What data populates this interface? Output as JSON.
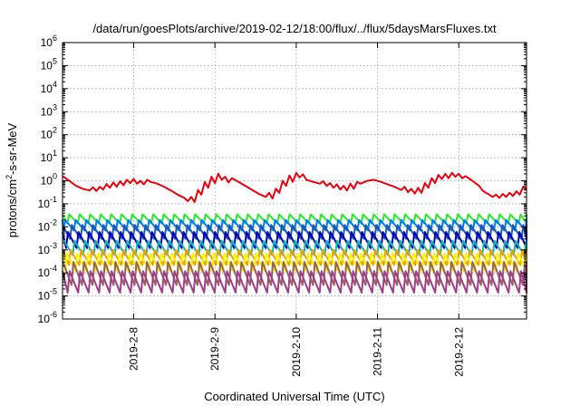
{
  "chart_data": {
    "type": "line",
    "title": "/data/run/goesPlots/archive/2019-02-12/18:00/flux/../flux/5daysMarsFluxes.txt",
    "xlabel": "Coordinated Universal Time (UTC)",
    "ylabel": "protons/cm²-s-sr-MeV",
    "y_scale": "log",
    "ylim": [
      1e-06,
      1000000.0
    ],
    "xlim": [
      "2019-02-07T03:00",
      "2019-02-12T20:00"
    ],
    "y_ticks": [
      {
        "value": 1e-06,
        "exp": "-6"
      },
      {
        "value": 1e-05,
        "exp": "-5"
      },
      {
        "value": 0.0001,
        "exp": "-4"
      },
      {
        "value": 0.001,
        "exp": "-3"
      },
      {
        "value": 0.01,
        "exp": "-2"
      },
      {
        "value": 0.1,
        "exp": "-1"
      },
      {
        "value": 1,
        "exp": "0"
      },
      {
        "value": 10,
        "exp": "1"
      },
      {
        "value": 100,
        "exp": "2"
      },
      {
        "value": 1000,
        "exp": "3"
      },
      {
        "value": 10000,
        "exp": "4"
      },
      {
        "value": 100000,
        "exp": "5"
      },
      {
        "value": 1000000,
        "exp": "6"
      }
    ],
    "x_ticks": [
      {
        "label": "2019-2-8",
        "x": "2019-02-08T00:00"
      },
      {
        "label": "2019-2-9",
        "x": "2019-02-09T00:00"
      },
      {
        "label": "2019-2-10",
        "x": "2019-02-10T00:00"
      },
      {
        "label": "2019-2-11",
        "x": "2019-02-11T00:00"
      },
      {
        "label": "2019-2-12",
        "x": "2019-02-12T00:00"
      }
    ],
    "grid": true,
    "series": [
      {
        "color": "#e8000b",
        "sawtooth": false,
        "points": [
          [
            "2019-02-07T03:00",
            1.6
          ],
          [
            "2019-02-07T05:00",
            1.0
          ],
          [
            "2019-02-07T07:00",
            0.6
          ],
          [
            "2019-02-07T09:00",
            0.45
          ],
          [
            "2019-02-07T11:00",
            0.38
          ],
          [
            "2019-02-07T12:00",
            0.52
          ],
          [
            "2019-02-07T13:00",
            0.36
          ],
          [
            "2019-02-07T14:00",
            0.55
          ],
          [
            "2019-02-07T15:00",
            0.42
          ],
          [
            "2019-02-07T16:00",
            0.72
          ],
          [
            "2019-02-07T17:00",
            0.5
          ],
          [
            "2019-02-07T18:00",
            0.85
          ],
          [
            "2019-02-07T19:00",
            0.55
          ],
          [
            "2019-02-07T20:00",
            0.95
          ],
          [
            "2019-02-07T21:00",
            0.65
          ],
          [
            "2019-02-07T22:00",
            1.1
          ],
          [
            "2019-02-07T23:00",
            0.8
          ],
          [
            "2019-02-08T00:00",
            1.2
          ],
          [
            "2019-02-08T01:00",
            0.75
          ],
          [
            "2019-02-08T02:00",
            1.0
          ],
          [
            "2019-02-08T03:00",
            0.7
          ],
          [
            "2019-02-08T04:00",
            1.1
          ],
          [
            "2019-02-08T05:00",
            0.9
          ],
          [
            "2019-02-08T07:00",
            0.75
          ],
          [
            "2019-02-08T09:00",
            0.55
          ],
          [
            "2019-02-08T11:00",
            0.38
          ],
          [
            "2019-02-08T13:00",
            0.25
          ],
          [
            "2019-02-08T15:00",
            0.18
          ],
          [
            "2019-02-08T16:00",
            0.13
          ],
          [
            "2019-02-08T17:00",
            0.2
          ],
          [
            "2019-02-08T18:00",
            0.12
          ],
          [
            "2019-02-08T19:00",
            0.4
          ],
          [
            "2019-02-08T20:00",
            0.25
          ],
          [
            "2019-02-08T21:00",
            0.9
          ],
          [
            "2019-02-08T22:00",
            0.5
          ],
          [
            "2019-02-08T23:00",
            1.5
          ],
          [
            "2019-02-09T00:00",
            0.8
          ],
          [
            "2019-02-09T01:00",
            2.0
          ],
          [
            "2019-02-09T02:00",
            1.1
          ],
          [
            "2019-02-09T03:00",
            1.5
          ],
          [
            "2019-02-09T04:00",
            0.85
          ],
          [
            "2019-02-09T05:00",
            1.3
          ],
          [
            "2019-02-09T07:00",
            0.9
          ],
          [
            "2019-02-09T09:00",
            0.6
          ],
          [
            "2019-02-09T11:00",
            0.4
          ],
          [
            "2019-02-09T13:00",
            0.27
          ],
          [
            "2019-02-09T15:00",
            0.2
          ],
          [
            "2019-02-09T16:00",
            0.3
          ],
          [
            "2019-02-09T17:00",
            0.17
          ],
          [
            "2019-02-09T18:00",
            0.45
          ],
          [
            "2019-02-09T19:00",
            0.3
          ],
          [
            "2019-02-09T20:00",
            1.0
          ],
          [
            "2019-02-09T21:00",
            0.6
          ],
          [
            "2019-02-09T22:00",
            1.7
          ],
          [
            "2019-02-09T23:00",
            0.9
          ],
          [
            "2019-02-10T00:00",
            2.2
          ],
          [
            "2019-02-10T01:00",
            1.4
          ],
          [
            "2019-02-10T02:00",
            1.9
          ],
          [
            "2019-02-10T03:00",
            1.1
          ],
          [
            "2019-02-10T05:00",
            0.9
          ],
          [
            "2019-02-10T07:00",
            0.75
          ],
          [
            "2019-02-10T08:00",
            0.95
          ],
          [
            "2019-02-10T09:00",
            0.6
          ],
          [
            "2019-02-10T10:00",
            0.8
          ],
          [
            "2019-02-10T11:00",
            0.5
          ],
          [
            "2019-02-10T12:00",
            0.7
          ],
          [
            "2019-02-10T13:00",
            0.42
          ],
          [
            "2019-02-10T14:00",
            0.6
          ],
          [
            "2019-02-10T15:00",
            0.38
          ],
          [
            "2019-02-10T16:00",
            0.75
          ],
          [
            "2019-02-10T17:00",
            0.45
          ],
          [
            "2019-02-10T18:00",
            0.9
          ],
          [
            "2019-02-10T19:00",
            0.75
          ],
          [
            "2019-02-10T21:00",
            1.0
          ],
          [
            "2019-02-10T23:00",
            1.1
          ],
          [
            "2019-02-11T01:00",
            0.9
          ],
          [
            "2019-02-11T03:00",
            0.7
          ],
          [
            "2019-02-11T05:00",
            0.55
          ],
          [
            "2019-02-11T07:00",
            0.4
          ],
          [
            "2019-02-11T08:00",
            0.55
          ],
          [
            "2019-02-11T09:00",
            0.32
          ],
          [
            "2019-02-11T10:00",
            0.45
          ],
          [
            "2019-02-11T11:00",
            0.28
          ],
          [
            "2019-02-11T12:00",
            0.5
          ],
          [
            "2019-02-11T13:00",
            0.3
          ],
          [
            "2019-02-11T14:00",
            0.8
          ],
          [
            "2019-02-11T15:00",
            0.5
          ],
          [
            "2019-02-11T16:00",
            1.3
          ],
          [
            "2019-02-11T17:00",
            0.8
          ],
          [
            "2019-02-11T18:00",
            1.8
          ],
          [
            "2019-02-11T19:00",
            1.2
          ],
          [
            "2019-02-11T20:00",
            2.0
          ],
          [
            "2019-02-11T21:00",
            1.3
          ],
          [
            "2019-02-11T22:00",
            2.2
          ],
          [
            "2019-02-11T23:00",
            1.5
          ],
          [
            "2019-02-12T00:00",
            2.0
          ],
          [
            "2019-02-12T01:00",
            1.3
          ],
          [
            "2019-02-12T02:00",
            1.6
          ],
          [
            "2019-02-12T04:00",
            1.0
          ],
          [
            "2019-02-12T06:00",
            0.6
          ],
          [
            "2019-02-12T07:00",
            0.38
          ],
          [
            "2019-02-12T08:00",
            0.3
          ],
          [
            "2019-02-12T09:00",
            0.25
          ],
          [
            "2019-02-12T10:00",
            0.2
          ],
          [
            "2019-02-12T11:00",
            0.25
          ],
          [
            "2019-02-12T12:00",
            0.18
          ],
          [
            "2019-02-12T13:00",
            0.27
          ],
          [
            "2019-02-12T14:00",
            0.2
          ],
          [
            "2019-02-12T15:00",
            0.3
          ],
          [
            "2019-02-12T16:00",
            0.22
          ],
          [
            "2019-02-12T17:00",
            0.35
          ],
          [
            "2019-02-12T18:00",
            0.25
          ],
          [
            "2019-02-12T19:00",
            0.55
          ],
          [
            "2019-02-12T20:00",
            0.4
          ]
        ]
      },
      {
        "color": "#22ee22",
        "sawtooth": true,
        "peak": 0.035,
        "trough": 0.014
      },
      {
        "color": "#0077ff",
        "sawtooth": true,
        "peak": 0.02,
        "trough": 0.007
      },
      {
        "color": "#1f5aa8",
        "sawtooth": true,
        "peak": 0.012,
        "trough": 0.003
      },
      {
        "color": "#0000bb",
        "sawtooth": true,
        "peak": 0.006,
        "trough": 0.0012
      },
      {
        "color": "#16b8a8",
        "sawtooth": true,
        "peak": 0.0025,
        "trough": 0.0006
      },
      {
        "color": "#f0a000",
        "sawtooth": true,
        "peak": 0.001,
        "trough": 0.00022
      },
      {
        "color": "#f5f500",
        "sawtooth": true,
        "peak": 0.0007,
        "trough": 0.00012
      },
      {
        "color": "#9a6060",
        "sawtooth": true,
        "peak": 0.0003,
        "trough": 3e-05
      },
      {
        "color": "#a03c8a",
        "sawtooth": true,
        "peak": 0.00012,
        "trough": 1.4e-05
      }
    ]
  }
}
